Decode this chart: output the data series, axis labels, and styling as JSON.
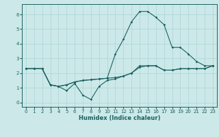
{
  "xlabel": "Humidex (Indice chaleur)",
  "bg_color": "#cce8e8",
  "grid_color": "#aad4d4",
  "line_color": "#1a6060",
  "xlim": [
    -0.5,
    23.5
  ],
  "ylim": [
    -0.3,
    6.7
  ],
  "xticks": [
    0,
    1,
    2,
    3,
    4,
    5,
    6,
    7,
    8,
    9,
    10,
    11,
    12,
    13,
    14,
    15,
    16,
    17,
    18,
    19,
    20,
    21,
    22,
    23
  ],
  "yticks": [
    0,
    1,
    2,
    3,
    4,
    5,
    6
  ],
  "series": [
    [
      2.3,
      2.3,
      2.3,
      1.2,
      1.1,
      0.8,
      1.3,
      0.5,
      0.2,
      1.1,
      1.5,
      1.6,
      1.8,
      2.0,
      2.5,
      2.5,
      2.5,
      2.2,
      2.2,
      2.3,
      2.3,
      2.3,
      2.3,
      2.5
    ],
    [
      2.3,
      2.3,
      2.3,
      1.2,
      1.1,
      1.2,
      1.4,
      1.5,
      1.55,
      1.6,
      1.65,
      1.7,
      1.8,
      2.0,
      2.4,
      2.5,
      2.5,
      2.2,
      2.2,
      2.3,
      2.3,
      2.3,
      2.3,
      2.5
    ],
    [
      2.3,
      2.3,
      2.3,
      1.2,
      1.1,
      1.2,
      1.4,
      1.5,
      1.55,
      1.6,
      1.65,
      3.3,
      4.3,
      5.5,
      6.2,
      6.2,
      5.8,
      5.3,
      3.75,
      3.75,
      3.3,
      2.8,
      2.5,
      2.5
    ]
  ]
}
